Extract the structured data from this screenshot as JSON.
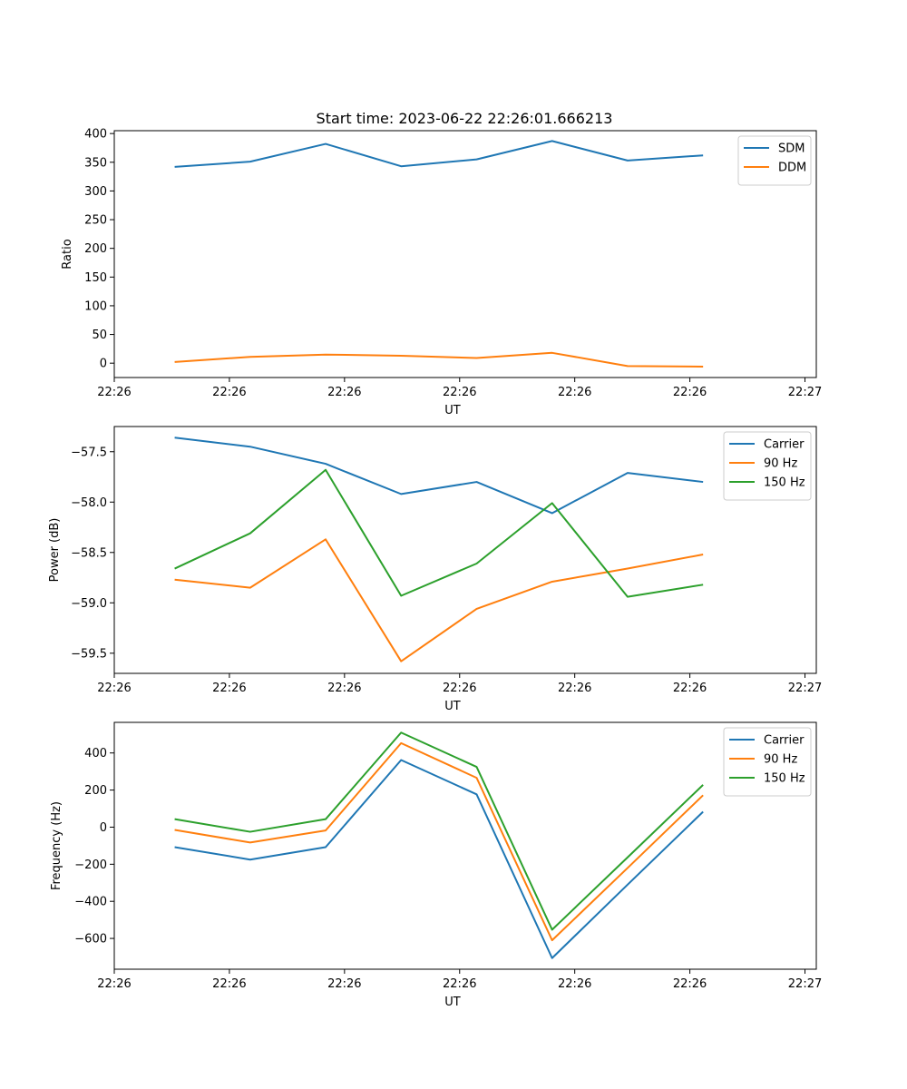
{
  "figure": {
    "title": "Start time: 2023-06-22 22:26:01.666213"
  },
  "colors": {
    "series_blue": "#1f77b4",
    "series_orange": "#ff7f0e",
    "series_green": "#2ca02c",
    "axes": "#000000",
    "legend_border": "#cccccc"
  },
  "chart_data": [
    {
      "type": "line",
      "title": "Start time: 2023-06-22 22:26:01.666213",
      "xlabel": "UT",
      "ylabel": "Ratio",
      "x": [
        1,
        2,
        3,
        4,
        5,
        6,
        7,
        8
      ],
      "xlim": [
        0.2,
        9.5
      ],
      "x_ticks": [
        {
          "value": 0.2,
          "label": "22:26"
        },
        {
          "value": 1.725,
          "label": "22:26"
        },
        {
          "value": 3.25,
          "label": "22:26"
        },
        {
          "value": 4.775,
          "label": "22:26"
        },
        {
          "value": 6.3,
          "label": "22:26"
        },
        {
          "value": 7.825,
          "label": "22:26"
        },
        {
          "value": 9.35,
          "label": "22:27"
        }
      ],
      "ylim": [
        -25,
        405
      ],
      "y_ticks": [
        0,
        50,
        100,
        150,
        200,
        250,
        300,
        350,
        400
      ],
      "grid": false,
      "legend_position": "upper right",
      "series": [
        {
          "name": "SDM",
          "color": "#1f77b4",
          "values": [
            342,
            351,
            382,
            343,
            355,
            387,
            353,
            362
          ]
        },
        {
          "name": "DDM",
          "color": "#ff7f0e",
          "values": [
            2,
            11,
            15,
            13,
            9,
            18,
            -5,
            -6
          ]
        }
      ]
    },
    {
      "type": "line",
      "xlabel": "UT",
      "ylabel": "Power (dB)",
      "x": [
        1,
        2,
        3,
        4,
        5,
        6,
        7,
        8
      ],
      "xlim": [
        0.2,
        9.5
      ],
      "x_ticks": [
        {
          "value": 0.2,
          "label": "22:26"
        },
        {
          "value": 1.725,
          "label": "22:26"
        },
        {
          "value": 3.25,
          "label": "22:26"
        },
        {
          "value": 4.775,
          "label": "22:26"
        },
        {
          "value": 6.3,
          "label": "22:26"
        },
        {
          "value": 7.825,
          "label": "22:26"
        },
        {
          "value": 9.35,
          "label": "22:27"
        }
      ],
      "ylim": [
        -59.7,
        -57.25
      ],
      "y_ticks": [
        {
          "value": -57.5,
          "label": "−57.5"
        },
        {
          "value": -58.0,
          "label": "−58.0"
        },
        {
          "value": -58.5,
          "label": "−58.5"
        },
        {
          "value": -59.0,
          "label": "−59.0"
        },
        {
          "value": -59.5,
          "label": "−59.5"
        }
      ],
      "grid": false,
      "legend_position": "upper right",
      "series": [
        {
          "name": "Carrier",
          "color": "#1f77b4",
          "values": [
            -57.36,
            -57.45,
            -57.62,
            -57.92,
            -57.8,
            -58.11,
            -57.71,
            -57.8
          ]
        },
        {
          "name": "90 Hz",
          "color": "#ff7f0e",
          "values": [
            -58.77,
            -58.85,
            -58.37,
            -59.58,
            -59.06,
            -58.79,
            -58.66,
            -58.52
          ]
        },
        {
          "name": "150 Hz",
          "color": "#2ca02c",
          "values": [
            -58.66,
            -58.31,
            -57.68,
            -58.93,
            -58.61,
            -58.01,
            -58.94,
            -58.82
          ]
        }
      ]
    },
    {
      "type": "line",
      "xlabel": "UT",
      "ylabel": "Frequency (Hz)",
      "x": [
        1,
        2,
        3,
        4,
        5,
        6,
        7,
        8
      ],
      "xlim": [
        0.2,
        9.5
      ],
      "x_ticks": [
        {
          "value": 0.2,
          "label": "22:26"
        },
        {
          "value": 1.725,
          "label": "22:26"
        },
        {
          "value": 3.25,
          "label": "22:26"
        },
        {
          "value": 4.775,
          "label": "22:26"
        },
        {
          "value": 6.3,
          "label": "22:26"
        },
        {
          "value": 7.825,
          "label": "22:26"
        },
        {
          "value": 9.35,
          "label": "22:27"
        }
      ],
      "ylim": [
        -766,
        565
      ],
      "y_ticks": [
        {
          "value": 400,
          "label": "400"
        },
        {
          "value": 200,
          "label": "200"
        },
        {
          "value": 0,
          "label": "0"
        },
        {
          "value": -200,
          "label": "−200"
        },
        {
          "value": -400,
          "label": "−400"
        },
        {
          "value": -600,
          "label": "−600"
        }
      ],
      "grid": false,
      "legend_position": "upper right",
      "series": [
        {
          "name": "Carrier",
          "color": "#1f77b4",
          "values": [
            -108,
            -175,
            -108,
            362,
            177,
            -706,
            -310,
            83
          ]
        },
        {
          "name": "90 Hz",
          "color": "#ff7f0e",
          "values": [
            -15,
            -83,
            -18,
            453,
            266,
            -610,
            -220,
            172
          ]
        },
        {
          "name": "150 Hz",
          "color": "#2ca02c",
          "values": [
            43,
            -25,
            43,
            510,
            325,
            -553,
            -163,
            228
          ]
        }
      ]
    }
  ]
}
